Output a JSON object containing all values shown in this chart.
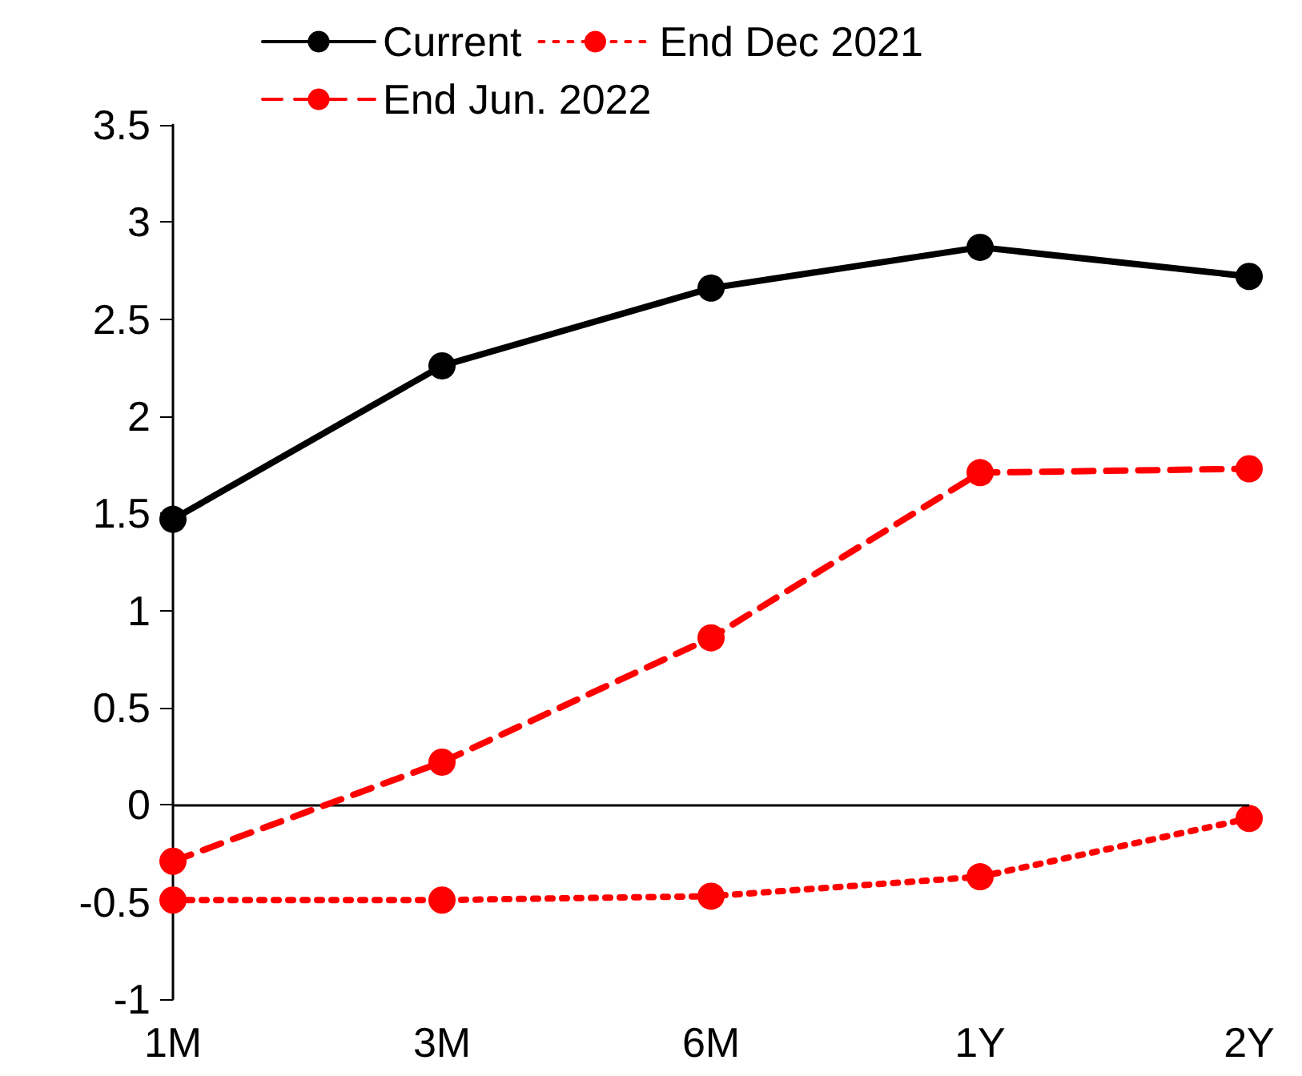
{
  "chart_data": {
    "type": "line",
    "categories": [
      "1M",
      "3M",
      "6M",
      "1Y",
      "2Y"
    ],
    "series": [
      {
        "name": "Current",
        "color": "#000000",
        "line_style": "solid",
        "values": [
          1.47,
          2.26,
          2.66,
          2.87,
          2.72
        ]
      },
      {
        "name": "End Dec 2021",
        "color": "#ff0000",
        "line_style": "dotted",
        "values": [
          -0.49,
          -0.49,
          -0.47,
          -0.37,
          -0.07
        ]
      },
      {
        "name": "End Jun. 2022",
        "color": "#ff0000",
        "line_style": "dashed",
        "values": [
          -0.29,
          0.22,
          0.86,
          1.71,
          1.73
        ]
      }
    ],
    "ylim": [
      -1,
      3.5
    ],
    "yticks": [
      -1,
      -0.5,
      0,
      0.5,
      1,
      1.5,
      2,
      2.5,
      3,
      3.5
    ],
    "ref_lines": [
      {
        "axis": "y",
        "value": 0,
        "color": "#000000"
      }
    ],
    "marker": "circle",
    "grid": false,
    "legend": "top"
  }
}
